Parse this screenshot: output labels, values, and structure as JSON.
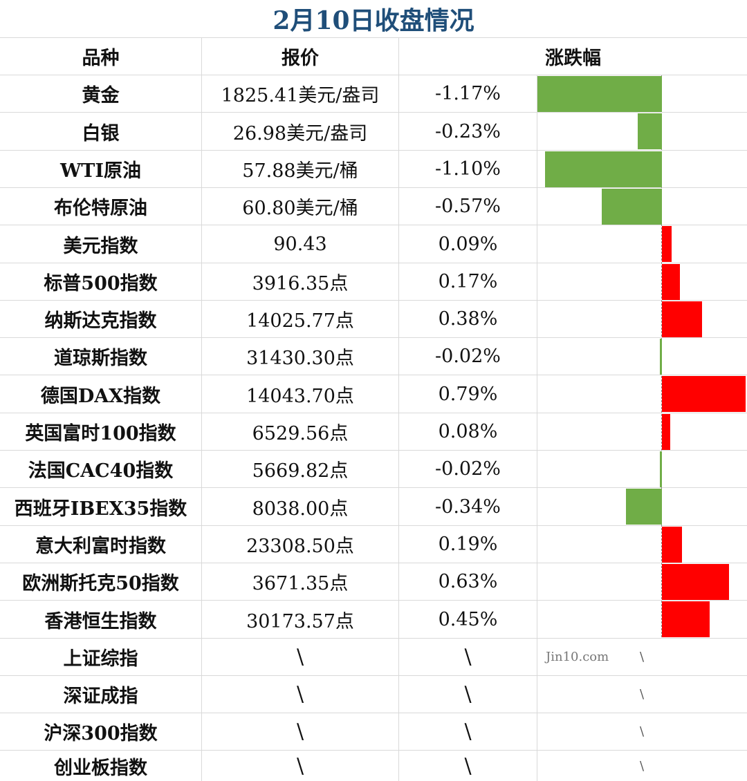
{
  "title": "2月10日收盘情况",
  "headers": {
    "name": "品种",
    "price": "报价",
    "change": "涨跌幅"
  },
  "colors": {
    "up": "#ff0000",
    "down": "#70ad47",
    "title": "#1f4e79"
  },
  "watermark": "Jin10.com",
  "chart_data": {
    "type": "bar",
    "orientation": "horizontal",
    "unit": "%",
    "categories": [
      "黄金",
      "白银",
      "WTI原油",
      "布伦特原油",
      "美元指数",
      "标普500指数",
      "纳斯达克指数",
      "道琼斯指数",
      "德国DAX指数",
      "英国富时100指数",
      "法国CAC40指数",
      "西班牙IBEX35指数",
      "意大利富时指数",
      "欧洲斯托克50指数",
      "香港恒生指数"
    ],
    "values": [
      -1.17,
      -0.23,
      -1.1,
      -0.57,
      0.09,
      0.17,
      0.38,
      -0.02,
      0.79,
      0.08,
      -0.02,
      -0.34,
      0.19,
      0.63,
      0.45
    ]
  },
  "rows": [
    {
      "name": "黄金",
      "price": "1825.41美元/盎司",
      "change": "-1.17%"
    },
    {
      "name": "白银",
      "price": "26.98美元/盎司",
      "change": "-0.23%"
    },
    {
      "name": "WTI原油",
      "price": "57.88美元/桶",
      "change": "-1.10%"
    },
    {
      "name": "布伦特原油",
      "price": "60.80美元/桶",
      "change": "-0.57%"
    },
    {
      "name": "美元指数",
      "price": "90.43",
      "change": "0.09%"
    },
    {
      "name": "标普500指数",
      "price": "3916.35点",
      "change": "0.17%"
    },
    {
      "name": "纳斯达克指数",
      "price": "14025.77点",
      "change": "0.38%"
    },
    {
      "name": "道琼斯指数",
      "price": "31430.30点",
      "change": "-0.02%"
    },
    {
      "name": "德国DAX指数",
      "price": "14043.70点",
      "change": "0.79%"
    },
    {
      "name": "英国富时100指数",
      "price": "6529.56点",
      "change": "0.08%"
    },
    {
      "name": "法国CAC40指数",
      "price": "5669.82点",
      "change": "-0.02%"
    },
    {
      "name": "西班牙IBEX35指数",
      "price": "8038.00点",
      "change": "-0.34%"
    },
    {
      "name": "意大利富时指数",
      "price": "23308.50点",
      "change": "0.19%"
    },
    {
      "name": "欧洲斯托克50指数",
      "price": "3671.35点",
      "change": "0.63%"
    },
    {
      "name": "香港恒生指数",
      "price": "30173.57点",
      "change": "0.45%"
    },
    {
      "name": "上证综指",
      "price": "\\",
      "change": "\\",
      "bar_text": "\\"
    },
    {
      "name": "深证成指",
      "price": "\\",
      "change": "\\",
      "bar_text": "\\"
    },
    {
      "name": "沪深300指数",
      "price": "\\",
      "change": "\\",
      "bar_text": "\\"
    },
    {
      "name": "创业板指数",
      "price": "\\",
      "change": "\\",
      "bar_text": "\\"
    }
  ]
}
